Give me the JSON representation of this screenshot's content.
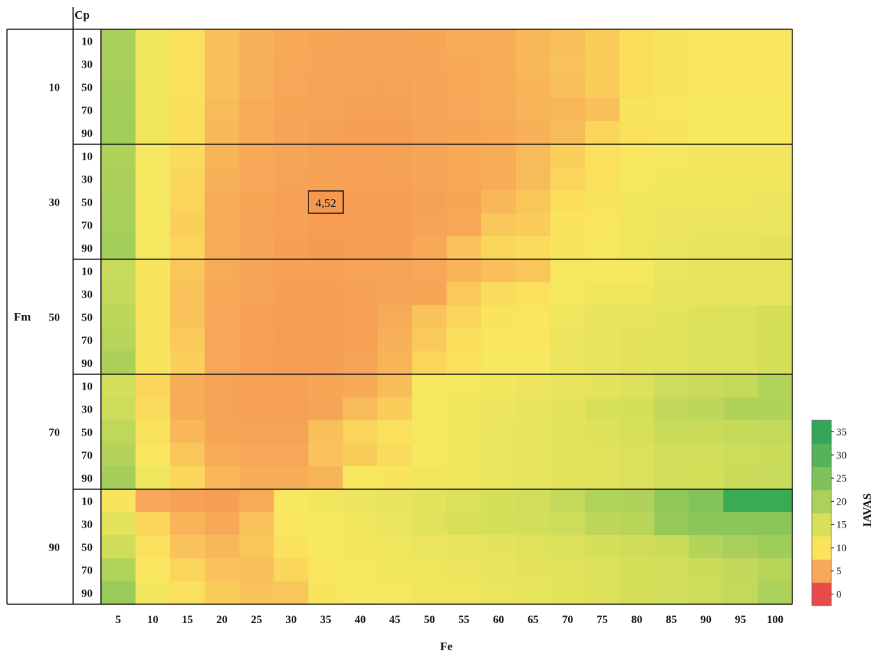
{
  "chart_data": {
    "type": "heatmap",
    "title": "",
    "xlabel": "Fe",
    "ylabel_outer": "Fm",
    "ylabel_inner": "Cp",
    "colorbar_label": "IAVAS",
    "x": [
      5,
      10,
      15,
      20,
      25,
      30,
      35,
      40,
      45,
      50,
      55,
      60,
      65,
      70,
      75,
      80,
      85,
      90,
      95,
      100
    ],
    "x_tick_labels": [
      "5",
      "10",
      "15",
      "20",
      "25",
      "30",
      "35",
      "40",
      "45",
      "50",
      "55",
      "60",
      "65",
      "70",
      "75",
      "80",
      "85",
      "90",
      "95",
      "100"
    ],
    "fm_levels": [
      "10",
      "30",
      "50",
      "70",
      "90"
    ],
    "cp_levels": [
      "10",
      "30",
      "50",
      "70",
      "90"
    ],
    "colorbar": {
      "range": [
        0,
        38
      ],
      "ticks": [
        "0",
        "5",
        "10",
        "15",
        "20",
        "25",
        "30",
        "35"
      ],
      "colors": [
        "#e84a4a",
        "#f7a95a",
        "#fbe45c",
        "#d8e05a",
        "#acd15a",
        "#7fc25a",
        "#55b459",
        "#33a657"
      ]
    },
    "annotation": {
      "text": "4,52",
      "fm": "30",
      "cp": "50",
      "fe": "35"
    },
    "values": [
      [
        20.5,
        12.6,
        10.4,
        8.2,
        7.4,
        6.9,
        6.4,
        6.2,
        6.2,
        6.4,
        7.2,
        7.2,
        7.8,
        8.2,
        9.0,
        10.0,
        11.2,
        11.6,
        11.4,
        11.4
      ],
      [
        20.5,
        12.6,
        10.4,
        8.2,
        7.4,
        6.7,
        6.3,
        6.1,
        6.1,
        6.3,
        6.9,
        7.2,
        7.8,
        8.4,
        9.0,
        10.2,
        11.0,
        11.4,
        11.4,
        11.4
      ],
      [
        20.8,
        12.6,
        10.4,
        8.2,
        7.4,
        6.5,
        6.2,
        5.9,
        5.9,
        6.3,
        6.7,
        7.2,
        7.6,
        8.2,
        9.0,
        10.0,
        11.0,
        11.6,
        11.4,
        11.4
      ],
      [
        21.0,
        12.8,
        10.2,
        8.0,
        7.2,
        6.4,
        6.1,
        5.8,
        5.8,
        6.2,
        6.6,
        7.0,
        7.6,
        7.7,
        8.2,
        11.2,
        11.6,
        12.0,
        12.0,
        12.0
      ],
      [
        21.2,
        12.8,
        10.2,
        7.8,
        7.0,
        6.2,
        5.8,
        5.4,
        5.4,
        5.9,
        6.4,
        6.8,
        7.4,
        8.0,
        9.4,
        10.6,
        11.2,
        12.0,
        12.0,
        12.0
      ],
      [
        19.8,
        12.2,
        9.8,
        7.6,
        6.8,
        6.1,
        5.8,
        5.7,
        5.8,
        6.2,
        6.8,
        7.2,
        8.0,
        9.2,
        10.4,
        11.6,
        12.2,
        12.4,
        12.4,
        12.4
      ],
      [
        20.2,
        12.2,
        9.6,
        7.4,
        6.6,
        5.9,
        5.6,
        5.5,
        5.7,
        6.1,
        6.7,
        7.2,
        8.0,
        9.4,
        10.6,
        12.2,
        12.6,
        12.6,
        12.6,
        12.6
      ],
      [
        20.4,
        12.2,
        9.4,
        7.2,
        6.4,
        5.7,
        4.52,
        5.2,
        5.3,
        5.8,
        6.4,
        7.8,
        8.6,
        10.0,
        11.2,
        12.6,
        12.8,
        12.8,
        12.8,
        13.0
      ],
      [
        20.6,
        12.2,
        9.2,
        7.0,
        6.2,
        5.6,
        5.1,
        5.0,
        5.4,
        6.2,
        6.8,
        8.6,
        9.0,
        11.0,
        11.4,
        12.6,
        13.0,
        13.2,
        13.2,
        13.2
      ],
      [
        21.0,
        12.2,
        9.4,
        7.2,
        6.2,
        5.4,
        4.9,
        5.0,
        5.4,
        6.8,
        8.4,
        9.6,
        9.8,
        11.2,
        12.2,
        12.8,
        13.2,
        13.4,
        13.4,
        13.8
      ],
      [
        16.8,
        11.2,
        8.6,
        7.0,
        6.1,
        5.6,
        5.6,
        5.9,
        6.1,
        6.6,
        7.6,
        8.2,
        8.6,
        11.6,
        12.0,
        12.2,
        13.2,
        13.4,
        13.4,
        13.4
      ],
      [
        17.2,
        11.2,
        8.4,
        6.8,
        5.9,
        5.4,
        5.4,
        5.7,
        6.1,
        6.4,
        8.8,
        9.8,
        10.4,
        12.2,
        12.6,
        12.8,
        13.6,
        13.6,
        13.6,
        13.6
      ],
      [
        18.2,
        11.2,
        8.4,
        6.6,
        5.7,
        5.2,
        5.2,
        5.5,
        7.0,
        8.4,
        9.4,
        11.2,
        11.6,
        12.8,
        13.4,
        13.6,
        14.0,
        14.4,
        14.6,
        15.2
      ],
      [
        18.8,
        11.2,
        8.8,
        6.6,
        5.7,
        5.1,
        5.0,
        5.5,
        7.4,
        8.8,
        10.0,
        11.6,
        11.6,
        13.0,
        13.4,
        13.8,
        14.2,
        14.6,
        14.6,
        15.2
      ],
      [
        20.2,
        11.2,
        9.2,
        6.6,
        5.7,
        5.2,
        5.2,
        6.2,
        7.6,
        9.4,
        10.4,
        11.8,
        11.8,
        13.0,
        13.4,
        13.8,
        14.2,
        14.6,
        14.6,
        15.2
      ],
      [
        15.6,
        9.6,
        7.2,
        6.0,
        5.6,
        5.6,
        6.4,
        6.8,
        8.0,
        11.8,
        12.2,
        12.6,
        13.0,
        13.4,
        13.8,
        14.4,
        16.2,
        16.6,
        17.2,
        19.4
      ],
      [
        16.2,
        9.8,
        7.2,
        6.0,
        5.6,
        5.6,
        6.2,
        8.0,
        9.0,
        12.2,
        12.6,
        13.0,
        13.4,
        14.0,
        15.0,
        15.4,
        17.6,
        18.0,
        19.6,
        19.8
      ],
      [
        17.8,
        10.6,
        7.8,
        6.4,
        6.0,
        6.0,
        8.2,
        9.4,
        10.8,
        12.2,
        12.6,
        13.2,
        13.6,
        14.0,
        14.4,
        15.0,
        16.6,
        16.6,
        17.0,
        17.4
      ],
      [
        19.2,
        11.6,
        8.6,
        7.0,
        6.6,
        6.6,
        8.4,
        9.0,
        9.8,
        12.0,
        12.6,
        13.2,
        13.6,
        14.0,
        14.2,
        14.6,
        15.6,
        15.8,
        16.2,
        16.6
      ],
      [
        20.8,
        12.8,
        9.6,
        7.8,
        7.2,
        7.2,
        7.6,
        12.0,
        11.2,
        12.6,
        12.8,
        13.2,
        13.6,
        14.0,
        14.2,
        14.6,
        15.6,
        15.4,
        16.6,
        16.8
      ],
      [
        11.0,
        6.6,
        5.6,
        5.4,
        7.2,
        12.0,
        12.6,
        13.0,
        13.4,
        14.0,
        14.6,
        15.2,
        15.8,
        17.2,
        19.4,
        19.6,
        23.0,
        24.6,
        30.4,
        30.4
      ],
      [
        14.0,
        9.6,
        7.6,
        6.8,
        8.4,
        11.4,
        12.2,
        12.6,
        13.2,
        14.2,
        15.0,
        15.4,
        15.6,
        16.2,
        18.0,
        18.6,
        22.6,
        23.6,
        23.6,
        23.8
      ],
      [
        16.0,
        10.4,
        8.4,
        7.8,
        8.6,
        10.8,
        11.8,
        12.4,
        12.8,
        13.2,
        13.4,
        13.8,
        14.2,
        14.6,
        15.2,
        16.0,
        16.4,
        19.2,
        20.6,
        21.4
      ],
      [
        19.4,
        11.4,
        9.4,
        8.4,
        8.2,
        9.6,
        11.6,
        12.2,
        12.6,
        12.8,
        13.0,
        13.4,
        13.8,
        14.2,
        14.6,
        15.4,
        15.8,
        16.4,
        17.6,
        18.6
      ],
      [
        22.0,
        12.4,
        10.6,
        9.0,
        8.4,
        8.6,
        11.2,
        11.8,
        12.2,
        12.6,
        12.8,
        13.2,
        13.6,
        14.0,
        14.4,
        15.2,
        15.6,
        16.2,
        17.4,
        20.0
      ]
    ]
  }
}
